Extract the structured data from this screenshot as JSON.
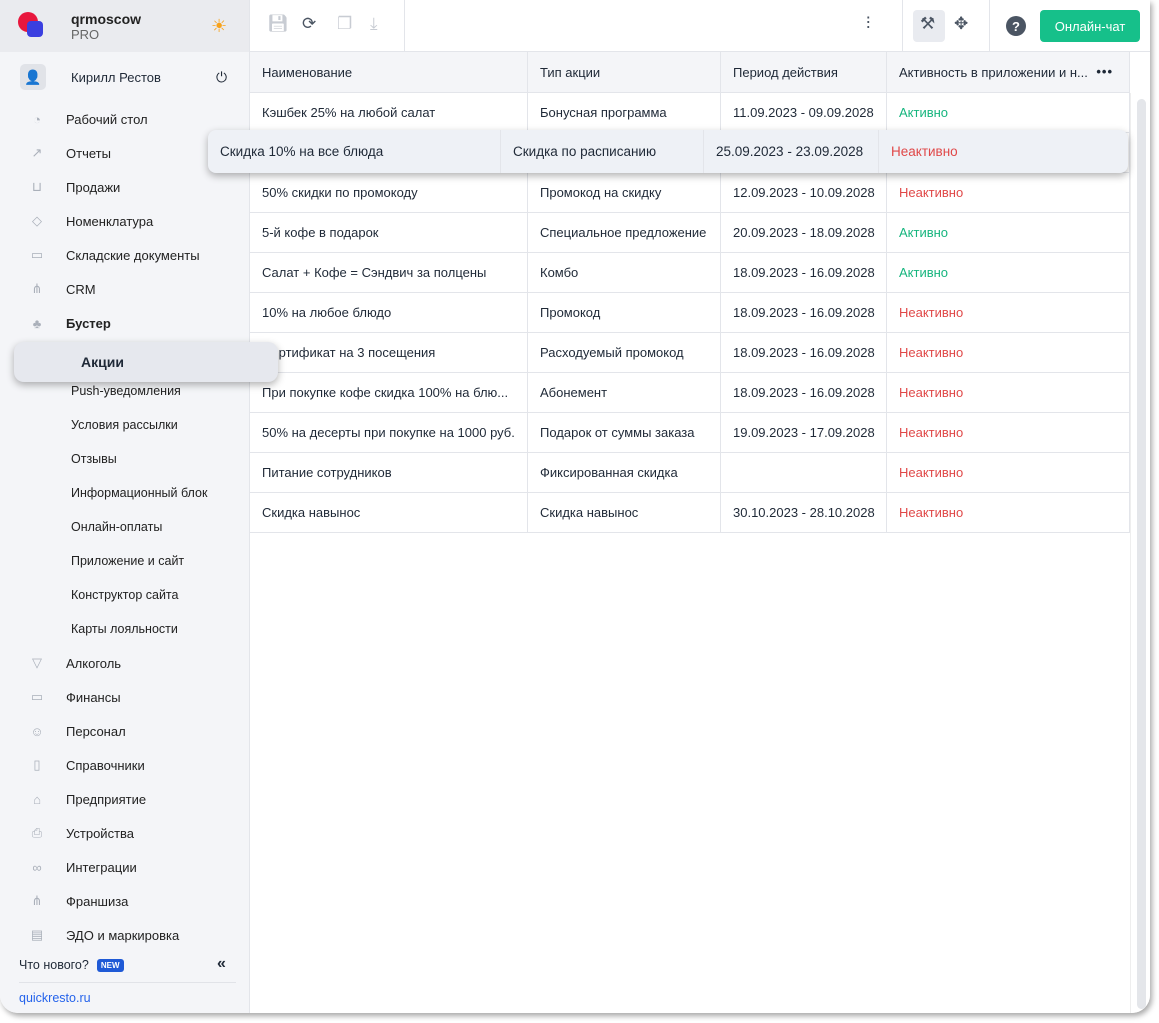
{
  "brand": {
    "name": "qrmoscow",
    "plan": "PRO"
  },
  "user": {
    "name": "Кирилл Рестов"
  },
  "nav": [
    {
      "label": "Рабочий стол",
      "icon": "dashboard-icon",
      "glyph": "◔"
    },
    {
      "label": "Отчеты",
      "icon": "chart-icon",
      "glyph": "↗"
    },
    {
      "label": "Продажи",
      "icon": "basket-icon",
      "glyph": "⊔"
    },
    {
      "label": "Номенклатура",
      "icon": "tag-icon",
      "glyph": "◇"
    },
    {
      "label": "Складские документы",
      "icon": "archive-icon",
      "glyph": "▭"
    },
    {
      "label": "CRM",
      "icon": "hierarchy-icon",
      "glyph": "⋔"
    },
    {
      "label": "Бустер",
      "icon": "booster-icon",
      "glyph": "♣"
    }
  ],
  "booster_sub": {
    "active": "Акции",
    "items": [
      "Push-уведомления",
      "Условия рассылки",
      "Отзывы",
      "Информационный блок",
      "Онлайн-оплаты",
      "Приложение и сайт",
      "Конструктор сайта",
      "Карты лояльности"
    ]
  },
  "nav2": [
    {
      "label": "Алкоголь",
      "icon": "glass-icon",
      "glyph": "▽"
    },
    {
      "label": "Финансы",
      "icon": "wallet-icon",
      "glyph": "▭"
    },
    {
      "label": "Персонал",
      "icon": "people-icon",
      "glyph": "☺"
    },
    {
      "label": "Справочники",
      "icon": "book-icon",
      "glyph": "▯"
    },
    {
      "label": "Предприятие",
      "icon": "store-icon",
      "glyph": "⌂"
    },
    {
      "label": "Устройства",
      "icon": "printer-icon",
      "glyph": "⎙"
    },
    {
      "label": "Интеграции",
      "icon": "infinity-icon",
      "glyph": "∞"
    },
    {
      "label": "Франшиза",
      "icon": "hierarchy-icon",
      "glyph": "⋔"
    },
    {
      "label": "ЭДО и маркировка",
      "icon": "document-icon",
      "glyph": "▤"
    }
  ],
  "footer": {
    "whats_new": "Что нового?",
    "new_badge": "NEW",
    "link": "quickresto.ru"
  },
  "toolbar": {
    "chat_label": "Онлайн-чат"
  },
  "table": {
    "columns": [
      "Наименование",
      "Тип акции",
      "Период действия",
      "Активность в приложении и н..."
    ],
    "rows": [
      [
        "Кэшбек 25% на любой салат",
        "Бонусная программа",
        "11.09.2023 - 09.09.2028",
        "Активно"
      ],
      [
        "50% скидки по промокоду",
        "Промокод на скидку",
        "12.09.2023 - 10.09.2028",
        "Неактивно"
      ],
      [
        "5-й кофе в подарок",
        "Специальное предложение",
        "20.09.2023 - 18.09.2028",
        "Активно"
      ],
      [
        "Салат + Кофе = Сэндвич за полцены",
        "Комбо",
        "18.09.2023 - 16.09.2028",
        "Активно"
      ],
      [
        "10% на любое блюдо",
        "Промокод",
        "18.09.2023 - 16.09.2028",
        "Неактивно"
      ],
      [
        "Сертификат на 3 посещения",
        "Расходуемый промокод",
        "18.09.2023 - 16.09.2028",
        "Неактивно"
      ],
      [
        "При покупке кофе скидка 100% на блю...",
        "Абонемент",
        "18.09.2023 - 16.09.2028",
        "Неактивно"
      ],
      [
        "50% на десерты при покупке на 1000 руб.",
        "Подарок от суммы заказа",
        "19.09.2023 - 17.09.2028",
        "Неактивно"
      ],
      [
        "Питание сотрудников",
        "Фиксированная скидка",
        "",
        "Неактивно"
      ],
      [
        "Скидка навынос",
        "Скидка навынос",
        "30.10.2023 - 28.10.2028",
        "Неактивно"
      ]
    ],
    "dragged_row": [
      "Скидка 10% на все блюда",
      "Скидка по расписанию",
      "25.09.2023 - 23.09.2028",
      "Неактивно"
    ]
  },
  "colors": {
    "active": "#16b57e",
    "inactive": "#e04848",
    "chat": "#16c08a",
    "accent": "#2563eb"
  }
}
